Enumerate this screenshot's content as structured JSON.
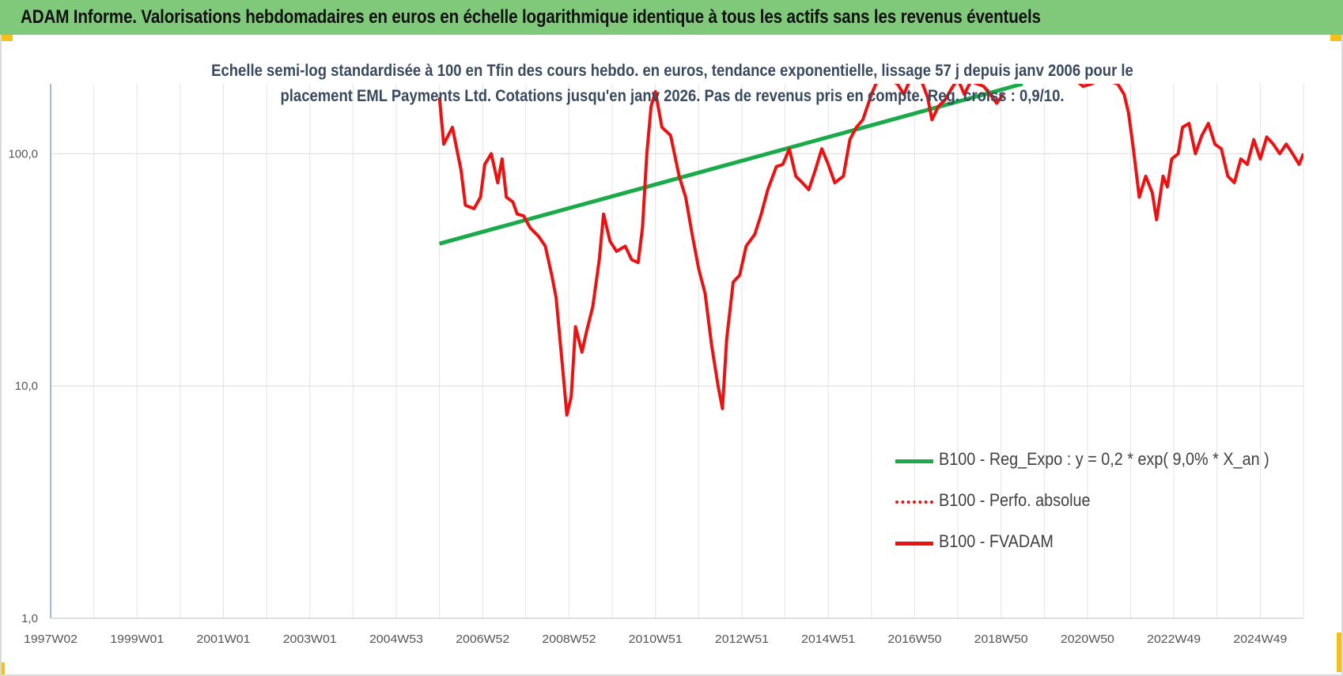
{
  "header": {
    "title": "ADAM Informe. Valorisations hebdomadaires en euros en échelle logarithmique identique à tous les actifs sans les revenus éventuels"
  },
  "colors": {
    "header_bg": "#80c97a",
    "corner": "#f2c218",
    "regression": "#1aaa4a",
    "fvadam": "#ee1111",
    "perfo": "#ee1111"
  },
  "chart_data": {
    "type": "line",
    "title_lines": [
      "Echelle semi-log standardisée à 100 en Tfin des cours hebdo. en euros, tendance exponentielle, lissage 57 j depuis janv 2006 pour le",
      "placement EML Payments Ltd. Cotations jusqu'en janv 2026. Pas de revenus pris en compte. Reg. croiss : 0,9/10."
    ],
    "y_scale": "log",
    "ylim": [
      1,
      200
    ],
    "y_ticks": [
      {
        "value": 1,
        "label": "1,0"
      },
      {
        "value": 10,
        "label": "10,0"
      },
      {
        "value": 100,
        "label": "100,0"
      }
    ],
    "xlim": [
      1997.0,
      2026.0
    ],
    "x_ticks": [
      {
        "x": 1997.0,
        "label": "1997W02"
      },
      {
        "x": 1999.0,
        "label": "1999W01"
      },
      {
        "x": 2001.0,
        "label": "2001W01"
      },
      {
        "x": 2003.0,
        "label": "2003W01"
      },
      {
        "x": 2005.0,
        "label": "2004W53"
      },
      {
        "x": 2007.0,
        "label": "2006W52"
      },
      {
        "x": 2009.0,
        "label": "2008W52"
      },
      {
        "x": 2011.0,
        "label": "2010W51"
      },
      {
        "x": 2013.0,
        "label": "2012W51"
      },
      {
        "x": 2015.0,
        "label": "2014W51"
      },
      {
        "x": 2017.0,
        "label": "2016W50"
      },
      {
        "x": 2019.0,
        "label": "2018W50"
      },
      {
        "x": 2021.0,
        "label": "2020W50"
      },
      {
        "x": 2023.0,
        "label": "2022W49"
      },
      {
        "x": 2025.0,
        "label": "2024W49"
      }
    ],
    "grid": true,
    "legend_position": "bottom-right",
    "series": [
      {
        "name": "B100 - Reg_Expo : y = 0,2 * exp( 9,0% *  X_an )",
        "color": "#1aaa4a",
        "style": "solid",
        "x": [
          2006.0,
          2019.5
        ],
        "y": [
          41,
          200
        ]
      },
      {
        "name": "B100 - Perfo. absolue",
        "color": "#ee1111",
        "style": "dotted",
        "x": [],
        "y": []
      },
      {
        "name": "B100 - FVADAM",
        "color": "#ee1111",
        "style": "solid",
        "segments": [
          {
            "x": [
              2006.0,
              2006.1,
              2006.3,
              2006.5,
              2006.6,
              2006.8,
              2006.95,
              2007.05,
              2007.2,
              2007.35,
              2007.45,
              2007.55,
              2007.7,
              2007.8,
              2007.95,
              2008.1,
              2008.3,
              2008.45,
              2008.6,
              2008.7,
              2008.85,
              2008.95,
              2009.05,
              2009.15,
              2009.3,
              2009.4,
              2009.55,
              2009.7,
              2009.8,
              2009.95,
              2010.1,
              2010.3,
              2010.45,
              2010.6,
              2010.7,
              2010.8,
              2010.9,
              2011.0,
              2011.15,
              2011.35,
              2011.55,
              2011.7,
              2011.85,
              2012.0,
              2012.15,
              2012.3,
              2012.45,
              2012.55,
              2012.65,
              2012.8,
              2012.95,
              2013.1,
              2013.3,
              2013.45,
              2013.6,
              2013.8,
              2013.95,
              2014.1,
              2014.25,
              2014.4,
              2014.55,
              2014.7,
              2014.85,
              2015.0,
              2015.15,
              2015.35,
              2015.5,
              2015.65,
              2015.8,
              2016.0,
              2016.2,
              2016.4,
              2016.6,
              2016.75,
              2016.9,
              2017.1,
              2017.3,
              2017.4,
              2017.55,
              2017.7,
              2017.85,
              2018.0,
              2018.15,
              2018.3,
              2018.45,
              2018.6,
              2018.75,
              2018.9,
              2019.05
            ],
            "y": [
              175,
              110,
              130,
              85,
              60,
              58,
              65,
              90,
              100,
              75,
              95,
              65,
              62,
              55,
              54,
              48,
              44,
              40,
              30,
              24,
              12,
              7.5,
              9,
              18,
              14,
              17,
              22,
              35,
              55,
              42,
              38,
              40,
              35,
              34,
              48,
              100,
              160,
              185,
              130,
              120,
              80,
              65,
              45,
              32,
              25,
              15,
              10,
              8,
              16,
              28,
              30,
              40,
              45,
              55,
              70,
              88,
              90,
              105,
              80,
              75,
              70,
              85,
              105,
              90,
              75,
              80,
              115,
              130,
              140,
              180,
              220,
              210,
              200,
              180,
              210,
              220,
              175,
              140,
              160,
              170,
              190,
              210,
              180,
              205,
              200,
              195,
              180,
              165,
              180
            ]
          },
          {
            "x": [
              2020.5,
              2020.7,
              2020.9,
              2021.1,
              2021.3,
              2021.5,
              2021.7,
              2021.85,
              2021.95,
              2022.05,
              2022.2,
              2022.35,
              2022.5,
              2022.6,
              2022.75,
              2022.85,
              2022.95,
              2023.1,
              2023.2,
              2023.35,
              2023.5,
              2023.65,
              2023.8,
              2023.95,
              2024.1,
              2024.25,
              2024.4,
              2024.55,
              2024.7,
              2024.85,
              2025.0,
              2025.15,
              2025.3,
              2025.45,
              2025.6,
              2025.75,
              2025.9,
              2026.0
            ],
            "y": [
              205,
              210,
              195,
              200,
              210,
              205,
              200,
              180,
              150,
              110,
              65,
              80,
              68,
              52,
              80,
              72,
              95,
              100,
              130,
              135,
              100,
              120,
              135,
              110,
              105,
              80,
              75,
              95,
              90,
              115,
              95,
              118,
              110,
              100,
              110,
              100,
              90,
              100
            ]
          }
        ]
      }
    ]
  }
}
